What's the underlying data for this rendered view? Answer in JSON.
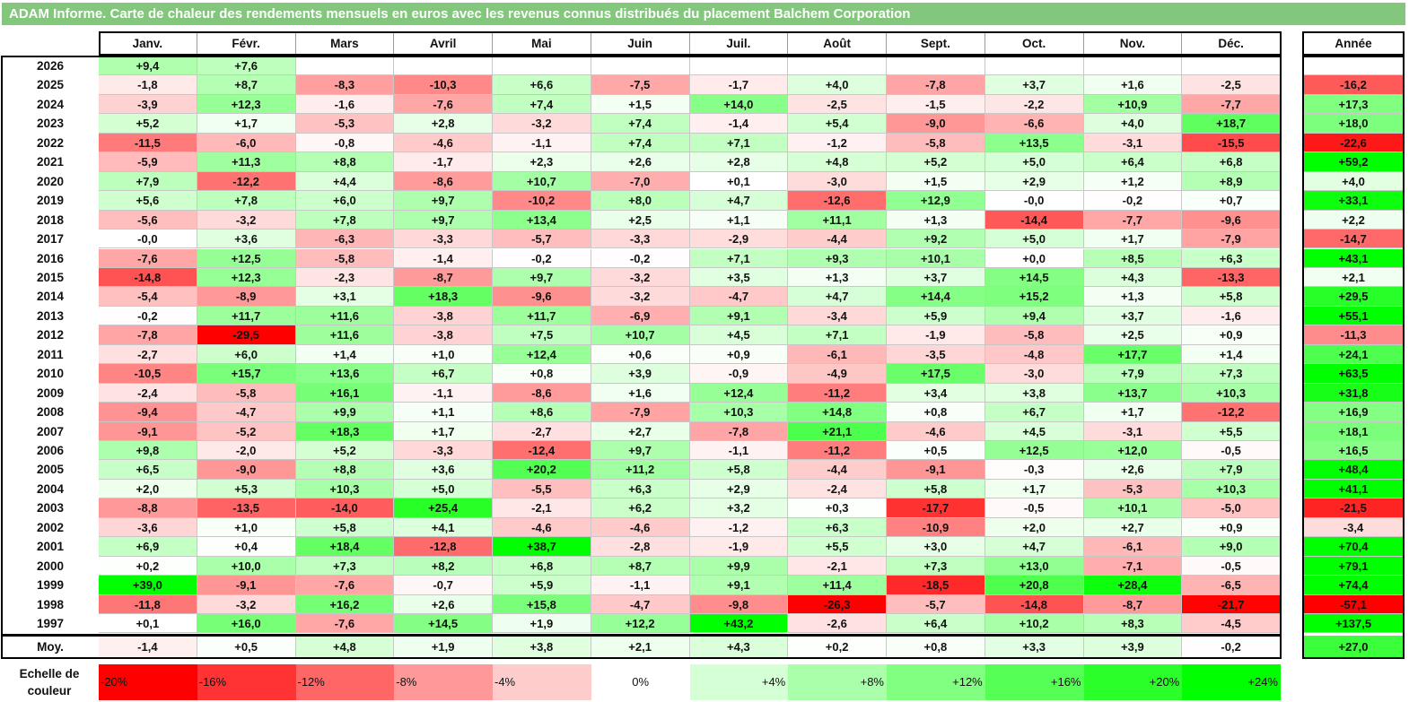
{
  "title": "ADAM Informe. Carte de chaleur des rendements mensuels en euros avec les revenus connus distribués du placement Balchem Corporation",
  "chart_data": {
    "type": "heatmap",
    "columns": [
      "Janv.",
      "Févr.",
      "Mars",
      "Avril",
      "Mai",
      "Juin",
      "Juil.",
      "Août",
      "Sept.",
      "Oct.",
      "Nov.",
      "Déc."
    ],
    "year_column_label": "Année",
    "rows": [
      {
        "year": "2026",
        "values": [
          "+9,4",
          "+7,6",
          "",
          "",
          "",
          "",
          "",
          "",
          "",
          "",
          "",
          ""
        ],
        "annual": ""
      },
      {
        "year": "2025",
        "values": [
          "-1,8",
          "+8,7",
          "-8,3",
          "-10,3",
          "+6,6",
          "-7,5",
          "-1,7",
          "+4,0",
          "-7,8",
          "+3,7",
          "+1,6",
          "-2,5"
        ],
        "annual": "-16,2"
      },
      {
        "year": "2024",
        "values": [
          "-3,9",
          "+12,3",
          "-1,6",
          "-7,6",
          "+7,4",
          "+1,5",
          "+14,0",
          "-2,5",
          "-1,5",
          "-2,2",
          "+10,9",
          "-7,7"
        ],
        "annual": "+17,3"
      },
      {
        "year": "2023",
        "values": [
          "+5,2",
          "+1,7",
          "-5,3",
          "+2,8",
          "-3,2",
          "+7,4",
          "-1,4",
          "+5,4",
          "-9,0",
          "-6,6",
          "+4,0",
          "+18,7"
        ],
        "annual": "+18,0"
      },
      {
        "year": "2022",
        "values": [
          "-11,5",
          "-6,0",
          "-0,8",
          "-4,6",
          "-1,1",
          "+7,4",
          "+7,1",
          "-1,2",
          "-5,8",
          "+13,5",
          "-3,1",
          "-15,5"
        ],
        "annual": "-22,6"
      },
      {
        "year": "2021",
        "values": [
          "-5,9",
          "+11,3",
          "+8,8",
          "-1,7",
          "+2,3",
          "+2,6",
          "+2,8",
          "+4,8",
          "+5,2",
          "+5,0",
          "+6,4",
          "+6,8"
        ],
        "annual": "+59,2"
      },
      {
        "year": "2020",
        "values": [
          "+7,9",
          "-12,2",
          "+4,4",
          "-8,6",
          "+10,7",
          "-7,0",
          "+0,1",
          "-3,0",
          "+1,5",
          "+2,9",
          "+1,2",
          "+8,9"
        ],
        "annual": "+4,0"
      },
      {
        "year": "2019",
        "values": [
          "+5,6",
          "+7,8",
          "+6,0",
          "+9,7",
          "-10,2",
          "+8,0",
          "+4,7",
          "-12,6",
          "+12,9",
          "-0,0",
          "-0,2",
          "+0,7"
        ],
        "annual": "+33,1"
      },
      {
        "year": "2018",
        "values": [
          "-5,6",
          "-3,2",
          "+7,8",
          "+9,7",
          "+13,4",
          "+2,5",
          "+1,1",
          "+11,1",
          "+1,3",
          "-14,4",
          "-7,7",
          "-9,6"
        ],
        "annual": "+2,2"
      },
      {
        "year": "2017",
        "values": [
          "-0,0",
          "+3,6",
          "-6,3",
          "-3,3",
          "-5,7",
          "-3,3",
          "-2,9",
          "-4,4",
          "+9,2",
          "+5,0",
          "+1,7",
          "-7,9"
        ],
        "annual": "-14,7"
      },
      {
        "year": "2016",
        "values": [
          "-7,6",
          "+12,5",
          "-5,8",
          "-1,4",
          "-0,2",
          "-0,2",
          "+7,1",
          "+9,3",
          "+10,1",
          "+0,0",
          "+8,5",
          "+6,3"
        ],
        "annual": "+43,1"
      },
      {
        "year": "2015",
        "values": [
          "-14,8",
          "+12,3",
          "-2,3",
          "-8,7",
          "+9,7",
          "-3,2",
          "+3,5",
          "+1,3",
          "+3,7",
          "+14,5",
          "+4,3",
          "-13,3"
        ],
        "annual": "+2,1"
      },
      {
        "year": "2014",
        "values": [
          "-5,4",
          "-8,9",
          "+3,1",
          "+18,3",
          "-9,6",
          "-3,2",
          "-4,7",
          "+4,7",
          "+14,4",
          "+15,2",
          "+1,3",
          "+5,8"
        ],
        "annual": "+29,5"
      },
      {
        "year": "2013",
        "values": [
          "-0,2",
          "+11,7",
          "+11,6",
          "-3,8",
          "+11,7",
          "-6,9",
          "+9,1",
          "-3,4",
          "+5,9",
          "+9,4",
          "+3,7",
          "-1,6"
        ],
        "annual": "+55,1"
      },
      {
        "year": "2012",
        "values": [
          "-7,8",
          "-29,5",
          "+11,6",
          "-3,8",
          "+7,5",
          "+10,7",
          "+4,5",
          "+7,1",
          "-1,9",
          "-5,8",
          "+2,5",
          "+0,9"
        ],
        "annual": "-11,3"
      },
      {
        "year": "2011",
        "values": [
          "-2,7",
          "+6,0",
          "+1,4",
          "+1,0",
          "+12,4",
          "+0,6",
          "+0,9",
          "-6,1",
          "-3,5",
          "-4,8",
          "+17,7",
          "+1,4"
        ],
        "annual": "+24,1"
      },
      {
        "year": "2010",
        "values": [
          "-10,5",
          "+15,7",
          "+13,6",
          "+6,7",
          "+0,8",
          "+3,9",
          "-0,9",
          "-4,9",
          "+17,5",
          "-3,0",
          "+7,9",
          "+7,3"
        ],
        "annual": "+63,5"
      },
      {
        "year": "2009",
        "values": [
          "-2,4",
          "-5,8",
          "+16,1",
          "-1,1",
          "-8,6",
          "+1,6",
          "+12,4",
          "-11,2",
          "+3,4",
          "+3,8",
          "+13,7",
          "+10,3"
        ],
        "annual": "+31,8"
      },
      {
        "year": "2008",
        "values": [
          "-9,4",
          "-4,7",
          "+9,9",
          "+1,1",
          "+8,6",
          "-7,9",
          "+10,3",
          "+14,8",
          "+0,8",
          "+6,7",
          "+1,7",
          "-12,2"
        ],
        "annual": "+16,9"
      },
      {
        "year": "2007",
        "values": [
          "-9,1",
          "-5,2",
          "+18,3",
          "+1,7",
          "-2,7",
          "+2,7",
          "-7,8",
          "+21,1",
          "-4,6",
          "+4,5",
          "-3,1",
          "+5,5"
        ],
        "annual": "+18,1"
      },
      {
        "year": "2006",
        "values": [
          "+9,8",
          "-2,0",
          "+5,2",
          "-3,3",
          "-12,4",
          "+9,7",
          "-1,1",
          "-11,2",
          "+0,5",
          "+12,5",
          "+12,0",
          "-0,5"
        ],
        "annual": "+16,5"
      },
      {
        "year": "2005",
        "values": [
          "+6,5",
          "-9,0",
          "+8,8",
          "+3,6",
          "+20,2",
          "+11,2",
          "+5,8",
          "-4,4",
          "-9,1",
          "-0,3",
          "+2,6",
          "+7,9"
        ],
        "annual": "+48,4"
      },
      {
        "year": "2004",
        "values": [
          "+2,0",
          "+5,3",
          "+10,3",
          "+5,0",
          "-5,5",
          "+6,3",
          "+2,9",
          "-2,4",
          "+5,8",
          "+1,7",
          "-5,3",
          "+10,3"
        ],
        "annual": "+41,1"
      },
      {
        "year": "2003",
        "values": [
          "-8,8",
          "-13,5",
          "-14,0",
          "+25,4",
          "-2,1",
          "+6,2",
          "+3,2",
          "+0,3",
          "-17,7",
          "-0,5",
          "+10,1",
          "-5,0"
        ],
        "annual": "-21,5"
      },
      {
        "year": "2002",
        "values": [
          "-3,6",
          "+1,0",
          "+5,8",
          "+4,1",
          "-4,6",
          "-4,6",
          "-1,2",
          "+6,3",
          "-10,9",
          "+2,0",
          "+2,7",
          "+0,9"
        ],
        "annual": "-3,4"
      },
      {
        "year": "2001",
        "values": [
          "+6,9",
          "+0,4",
          "+18,4",
          "-12,8",
          "+38,7",
          "-2,8",
          "-1,9",
          "+5,5",
          "+3,0",
          "+4,7",
          "-6,1",
          "+9,0"
        ],
        "annual": "+70,4"
      },
      {
        "year": "2000",
        "values": [
          "+0,2",
          "+10,0",
          "+7,3",
          "+8,2",
          "+6,8",
          "+8,7",
          "+9,9",
          "-2,1",
          "+7,3",
          "+13,0",
          "-7,1",
          "-0,5"
        ],
        "annual": "+79,1"
      },
      {
        "year": "1999",
        "values": [
          "+39,0",
          "-9,1",
          "-7,6",
          "-0,7",
          "+5,9",
          "-1,1",
          "+9,1",
          "+11,4",
          "-18,5",
          "+20,8",
          "+28,4",
          "-6,5"
        ],
        "annual": "+74,4"
      },
      {
        "year": "1998",
        "values": [
          "-11,8",
          "-3,2",
          "+16,2",
          "+2,6",
          "+15,8",
          "-4,7",
          "-9,8",
          "-26,3",
          "-5,7",
          "-14,8",
          "-8,7",
          "-21,7"
        ],
        "annual": "-57,1"
      },
      {
        "year": "1997",
        "values": [
          "+0,1",
          "+16,0",
          "-7,6",
          "+14,5",
          "+1,9",
          "+12,2",
          "+43,2",
          "-2,6",
          "+6,4",
          "+10,2",
          "+8,3",
          "-4,5"
        ],
        "annual": "+137,5"
      }
    ],
    "average": {
      "label": "Moy.",
      "values": [
        "-1,4",
        "+0,5",
        "+4,8",
        "+1,9",
        "+3,8",
        "+2,1",
        "+4,3",
        "+0,2",
        "+0,8",
        "+3,3",
        "+3,9",
        "-0,2"
      ],
      "annual": "+27,0"
    },
    "color_scale": {
      "label": "Echelle de couleur",
      "stops": [
        "-20%",
        "-16%",
        "-12%",
        "-8%",
        "-4%",
        "0%",
        "+4%",
        "+8%",
        "+12%",
        "+16%",
        "+20%",
        "+24%"
      ],
      "stop_values": [
        -20,
        -16,
        -12,
        -8,
        -4,
        0,
        4,
        8,
        12,
        16,
        20,
        24
      ]
    },
    "colors": {
      "negative": "#ff0000",
      "neutral": "#ffffff",
      "positive": "#00ff00",
      "title_bar": "#82c77c"
    }
  }
}
